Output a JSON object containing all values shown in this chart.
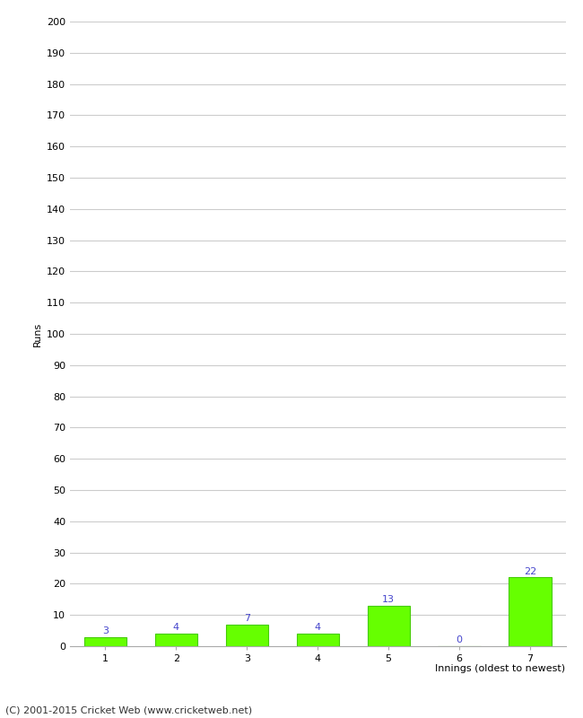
{
  "categories": [
    "1",
    "2",
    "3",
    "4",
    "5",
    "6",
    "7"
  ],
  "values": [
    3,
    4,
    7,
    4,
    13,
    0,
    22
  ],
  "bar_color": "#66ff00",
  "bar_edge_color": "#44cc00",
  "xlabel": "Innings (oldest to newest)",
  "ylabel": "Runs",
  "ylim": [
    0,
    200
  ],
  "ytick_step": 10,
  "label_color": "#4444cc",
  "label_fontsize": 8,
  "axis_fontsize": 8,
  "tick_fontsize": 8,
  "footer_text": "(C) 2001-2015 Cricket Web (www.cricketweb.net)",
  "footer_fontsize": 8,
  "background_color": "#ffffff",
  "grid_color": "#cccccc"
}
